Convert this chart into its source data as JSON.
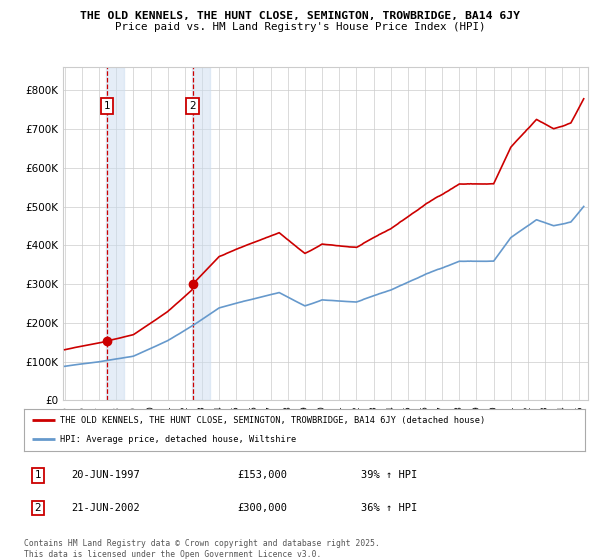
{
  "title1": "THE OLD KENNELS, THE HUNT CLOSE, SEMINGTON, TROWBRIDGE, BA14 6JY",
  "title2": "Price paid vs. HM Land Registry's House Price Index (HPI)",
  "sale1_date": "20-JUN-1997",
  "sale1_price": 153000,
  "sale1_pct": "39% ↑ HPI",
  "sale2_date": "21-JUN-2002",
  "sale2_price": 300000,
  "sale2_pct": "36% ↑ HPI",
  "legend_line1": "THE OLD KENNELS, THE HUNT CLOSE, SEMINGTON, TROWBRIDGE, BA14 6JY (detached house)",
  "legend_line2": "HPI: Average price, detached house, Wiltshire",
  "footnote": "Contains HM Land Registry data © Crown copyright and database right 2025.\nThis data is licensed under the Open Government Licence v3.0.",
  "red_color": "#cc0000",
  "blue_color": "#6699cc",
  "marker_color": "#cc0000",
  "vline_color": "#cc0000",
  "shade_color": "#ccddf0",
  "grid_color": "#cccccc",
  "background_color": "#ffffff",
  "ylim": [
    0,
    860000
  ],
  "xlim_start": 1994.9,
  "xlim_end": 2025.5
}
